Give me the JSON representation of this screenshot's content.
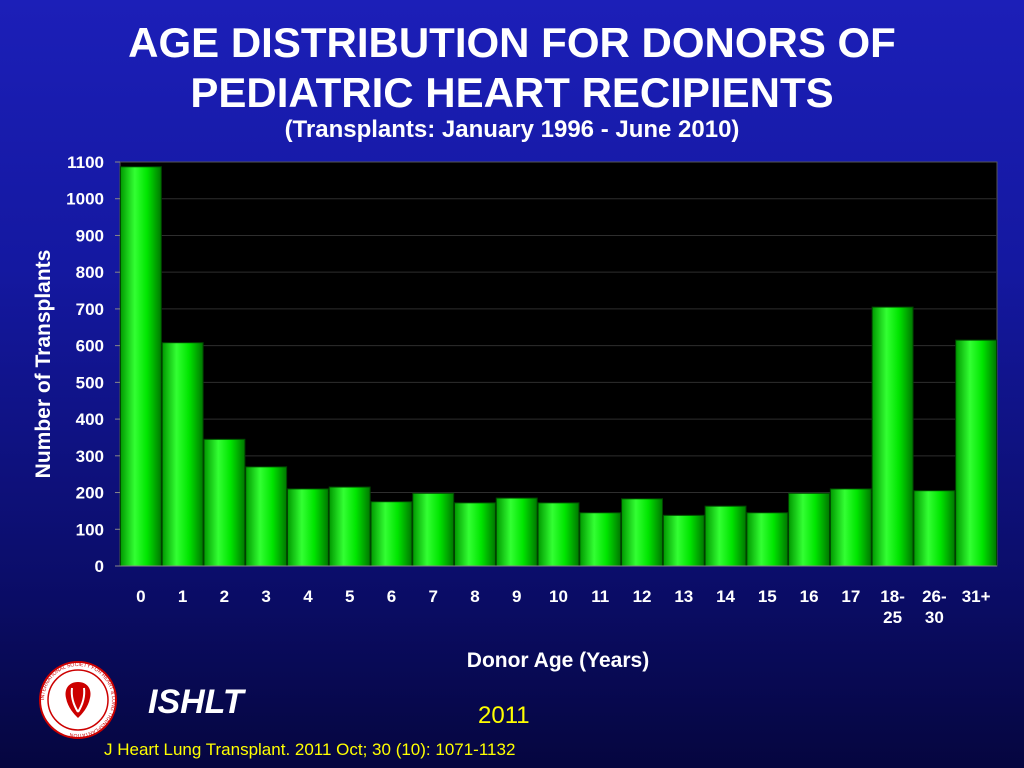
{
  "header": {
    "title_line1": "AGE DISTRIBUTION FOR DONORS OF",
    "title_line2": "PEDIATRIC HEART RECIPIENTS",
    "subtitle": "(Transplants: January 1996 - June 2010)"
  },
  "chart_data": {
    "type": "bar",
    "title": "AGE DISTRIBUTION FOR DONORS OF PEDIATRIC HEART RECIPIENTS",
    "subtitle": "(Transplants: January 1996 - June 2010)",
    "xlabel": "Donor Age (Years)",
    "ylabel": "Number of Transplants",
    "categories": [
      [
        "0"
      ],
      [
        "1"
      ],
      [
        "2"
      ],
      [
        "3"
      ],
      [
        "4"
      ],
      [
        "5"
      ],
      [
        "6"
      ],
      [
        "7"
      ],
      [
        "8"
      ],
      [
        "9"
      ],
      [
        "10"
      ],
      [
        "11"
      ],
      [
        "12"
      ],
      [
        "13"
      ],
      [
        "14"
      ],
      [
        "15"
      ],
      [
        "16"
      ],
      [
        "17"
      ],
      [
        "18-",
        "25"
      ],
      [
        "26-",
        "30"
      ],
      [
        "31+"
      ]
    ],
    "values": [
      1087,
      608,
      345,
      270,
      210,
      215,
      175,
      198,
      172,
      185,
      172,
      145,
      183,
      138,
      163,
      145,
      198,
      210,
      705,
      205,
      615
    ],
    "ylim": [
      0,
      1100
    ],
    "yticks": [
      0,
      100,
      200,
      300,
      400,
      500,
      600,
      700,
      800,
      900,
      1000,
      1100
    ],
    "grid": true,
    "legend": "none",
    "colors": {
      "bar": "#00ee00",
      "bar_light": "#66ff66",
      "bar_dark": "#008800",
      "plot_background": "#000000",
      "gridline": "#2e2e2e"
    }
  },
  "footer": {
    "organization": "ISHLT",
    "year": "2011",
    "citation": "J Heart Lung Transplant. 2011 Oct; 30 (10): 1071-1132",
    "logo_icon": "ishlt-seal-icon",
    "logo_text": "INTERNATIONAL SOCIETY FOR HEART & LUNG TRANSPLANTATION"
  }
}
